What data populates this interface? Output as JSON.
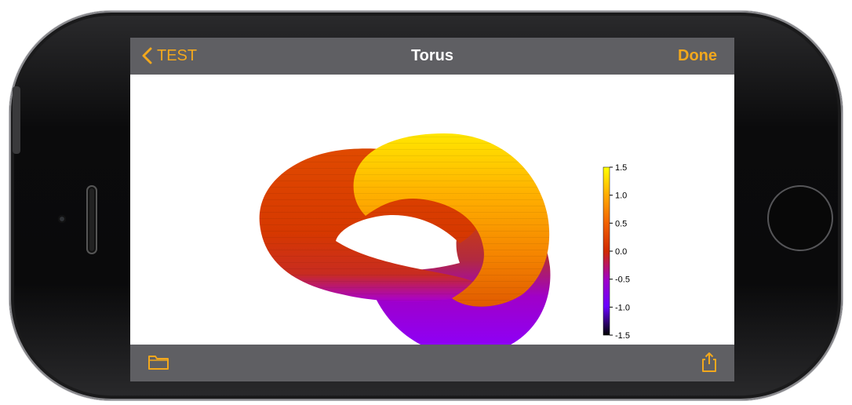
{
  "nav": {
    "back_label": "TEST",
    "title": "Torus",
    "done_label": "Done"
  },
  "toolbar": {
    "left_icon": "folder-icon",
    "right_icon": "share-icon"
  },
  "colors": {
    "accent": "#f2a81d",
    "bar": "#5f5f63"
  },
  "colorbar": {
    "ticks": [
      "1.5",
      "1.0",
      "0.5",
      "0.0",
      "-0.5",
      "-1.0",
      "-1.5"
    ],
    "range": [
      -1.5,
      1.5
    ],
    "colormap": [
      "#ffff00",
      "#ffaa00",
      "#f26300",
      "#d02a00",
      "#a000c8",
      "#6a00ff",
      "#000000"
    ]
  }
}
